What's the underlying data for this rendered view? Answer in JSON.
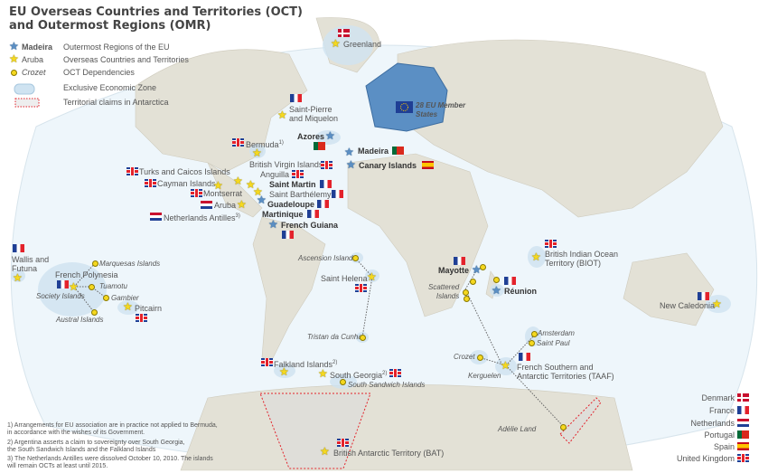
{
  "title": {
    "line1": "EU Overseas Countries and Territories (OCT)",
    "line2": "and Outermost Regions (OMR)"
  },
  "legend": {
    "omr_example": "Madeira",
    "omr_label": "Outermost Regions of the EU",
    "oct_example": "Aruba",
    "oct_label": "Overseas Countries and Territories",
    "dep_example": "Crozet",
    "dep_label": "OCT Dependencies",
    "eez_label": "Exclusive Economic Zone",
    "claims_label": "Territorial claims in Antarctica"
  },
  "eu_label": {
    "line1": "28 EU Member",
    "line2": "States"
  },
  "territories": {
    "greenland": "Greenland",
    "spm1": "Saint-Pierre",
    "spm2": "and Miquelon",
    "bermuda": "Bermuda",
    "bermuda_note": "1)",
    "azores": "Azores",
    "madeira": "Madeira",
    "canary": "Canary Islands",
    "turks": "Turks and Caicos Islands",
    "cayman": "Cayman Islands",
    "bvi": "British Virgin Islands",
    "anguilla": "Anguilla",
    "saint_martin": "Saint Martin",
    "saint_barth": "Saint Barthélemy",
    "montserrat": "Montserrat",
    "aruba": "Aruba",
    "guadeloupe": "Guadeloupe",
    "martinique": "Martinique",
    "antilles": "Netherlands Antilles",
    "antilles_note": "3)",
    "guiana": "French Guiana",
    "wallis1": "Wallis and",
    "wallis2": "Futuna",
    "polynesia": "French Polynesia",
    "marquesas": "Marquesas Islands",
    "tuamotu": "Tuamotu",
    "society": "Society Islands",
    "gambier": "Gambier",
    "pitcairn": "Pitcairn",
    "austral": "Austral Islands",
    "ascension": "Ascension Island",
    "st_helena": "Saint Helena",
    "tristan": "Tristan da Cunha",
    "mayotte": "Mayotte",
    "scattered1": "Scattered",
    "scattered2": "Islands",
    "reunion": "Réunion",
    "biot1": "British Indian Ocean",
    "biot2": "Territory (BIOT)",
    "amsterdam": "Amsterdam",
    "saint_paul": "Saint Paul",
    "crozet": "Crozet",
    "taaf1": "French Southern and",
    "taaf2": "Antarctic Territories (TAAF)",
    "kerguelen": "Kerguelen",
    "falkland": "Falkland Islands",
    "falkland_note": "2)",
    "south_georgia": "South Georgia",
    "sg_note": "2)",
    "south_sandwich": "South Sandwich Islands",
    "adelie": "Adélie Land",
    "bat": "British Antarctic Territory (BAT)",
    "new_caledonia": "New Caledonia"
  },
  "countries": [
    "Denmark",
    "France",
    "Netherlands",
    "Portugal",
    "Spain",
    "United Kingdom"
  ],
  "notes": [
    "1)  Arrangements for EU association are in practice not applied to Bermuda,",
    "in accordance with the wishes of its Government.",
    "2) Argentina asserts a claim to sovereignty over South Georgia,",
    "the South Sandwich Islands and the Falkland Islands",
    "3) The Netherlands Antilles were dissolved October 10, 2010. The islands",
    "will remain OCTs at least until 2015."
  ],
  "colors": {
    "ocean": "#eef6fb",
    "land": "#e3e1d6",
    "eu": "#5b8fc4",
    "eez": "#cfe3f1",
    "oct_star": "#f5d81f",
    "omr_star": "#5b8fc4",
    "claim": "#e3222b"
  }
}
